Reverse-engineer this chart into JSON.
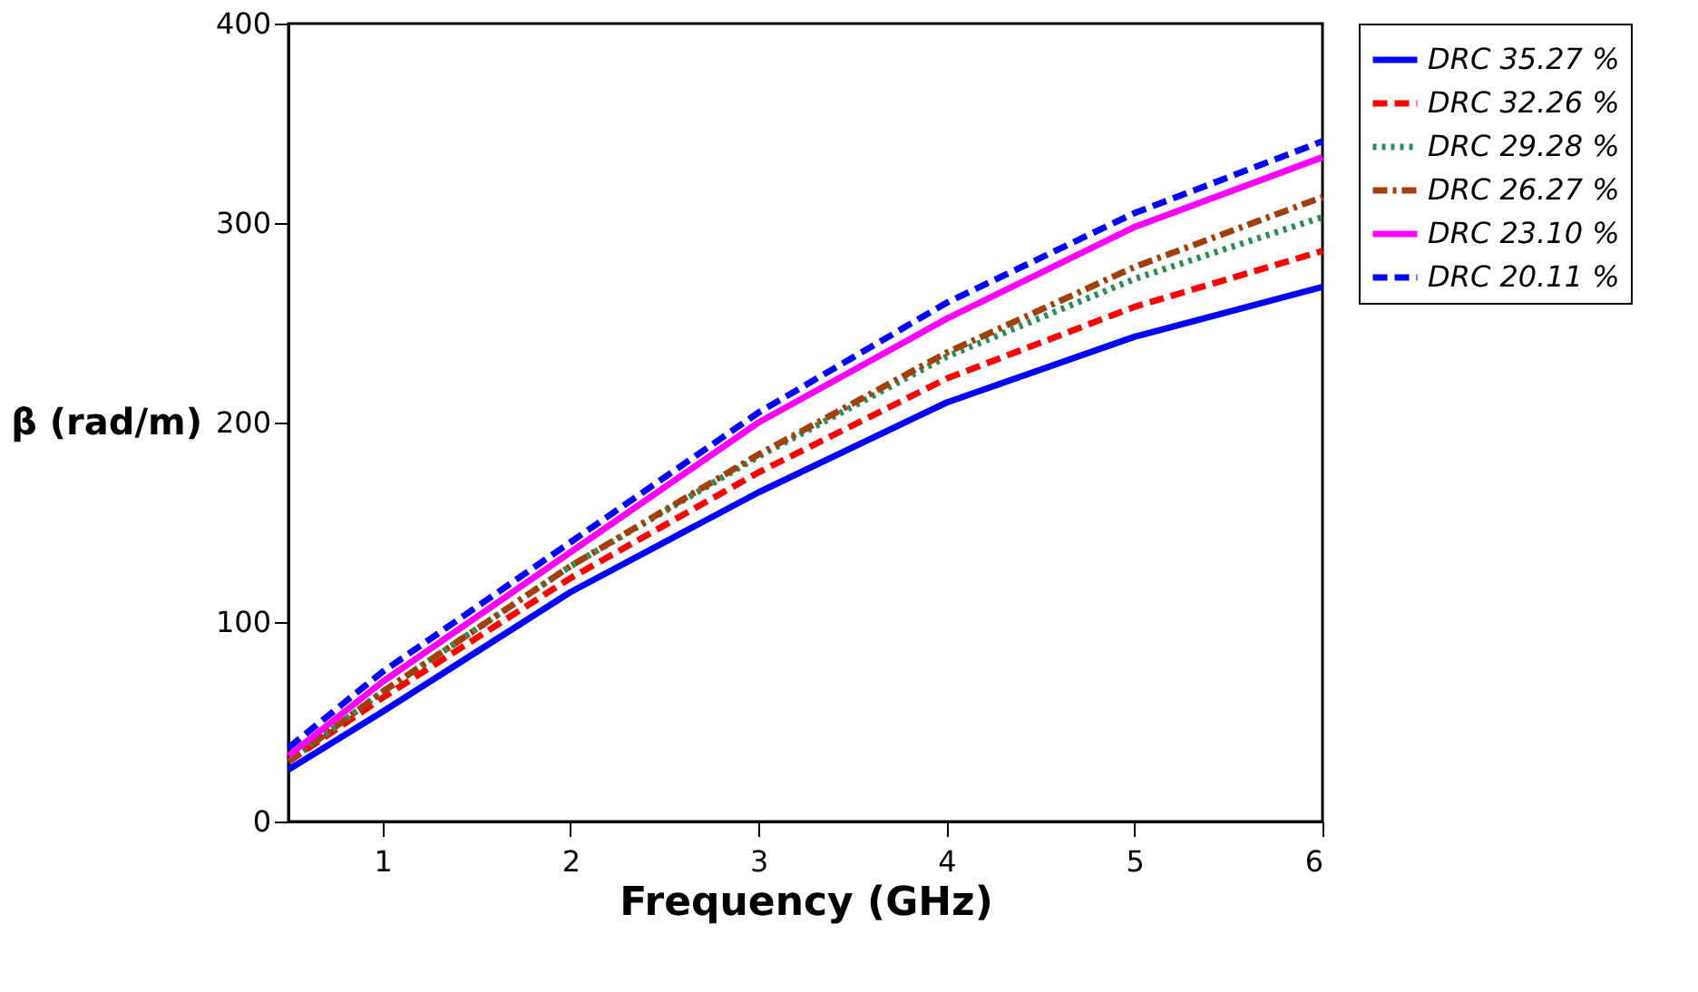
{
  "chart_data": {
    "type": "line",
    "xlabel": "Frequency (GHz)",
    "ylabel": "β (rad/m)",
    "x": [
      0.5,
      1,
      2,
      3,
      4,
      5,
      6
    ],
    "series": [
      {
        "name": "DRC 35.27 %",
        "color": "#0000ff",
        "line_style": "solid",
        "values": [
          26,
          55,
          115,
          165,
          210,
          243,
          268
        ]
      },
      {
        "name": "DRC 32.26 %",
        "color": "#ff0000",
        "line_style": "dashed",
        "values": [
          30,
          62,
          122,
          175,
          222,
          258,
          286
        ]
      },
      {
        "name": "DRC 29.28 %",
        "color": "#2e8b57",
        "line_style": "dotted",
        "values": [
          30,
          65,
          128,
          183,
          233,
          272,
          303
        ]
      },
      {
        "name": "DRC 26.27 %",
        "color": "#a0410d",
        "line_style": "dashdot",
        "values": [
          30,
          65,
          128,
          184,
          235,
          278,
          313
        ]
      },
      {
        "name": "DRC 23.10 %",
        "color": "#ff00ff",
        "line_style": "solid",
        "values": [
          33,
          70,
          135,
          200,
          252,
          298,
          333
        ]
      },
      {
        "name": "DRC 20.11 %",
        "color": "#0000ff",
        "line_style": "dashed",
        "values": [
          37,
          75,
          140,
          205,
          260,
          305,
          341
        ]
      }
    ],
    "xlim": [
      0.5,
      6
    ],
    "xticks": [
      1,
      2,
      3,
      4,
      5,
      6
    ],
    "ylim": [
      0,
      400
    ],
    "yticks": [
      0,
      100,
      200,
      300,
      400
    ],
    "grid": false,
    "legend": "right",
    "marker": "none"
  }
}
